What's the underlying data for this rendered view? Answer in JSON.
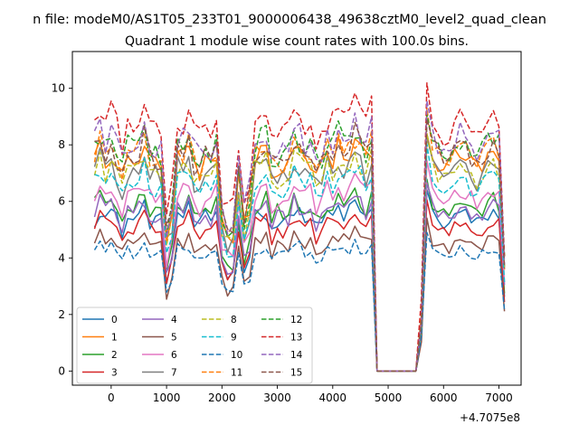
{
  "chart_data": {
    "type": "line",
    "suptitle": "n file: modeM0/AS1T05_233T01_9000006438_49638cztM0_level2_quad_clean",
    "title": "Quadrant 1 module wise count rates with 100.0s bins.",
    "xlabel": "",
    "ylabel": "",
    "offset_text": "+4.7075e8",
    "xlim": [
      -700,
      7400
    ],
    "ylim": [
      -0.5,
      11.3
    ],
    "xticks": [
      0,
      1000,
      2000,
      3000,
      4000,
      5000,
      6000,
      7000
    ],
    "yticks": [
      0,
      2,
      4,
      6,
      8,
      10
    ],
    "legend_position": "lower-left",
    "legend_columns": 4,
    "x_segments": [
      {
        "start": -300,
        "end": 4700,
        "step": 100
      },
      {
        "start": 4800,
        "end": 5500,
        "step": 100
      },
      {
        "start": 5600,
        "end": 7100,
        "step": 100
      }
    ],
    "series": [
      {
        "name": "0",
        "color": "#1f77b4",
        "style": "solid",
        "mean": 5.4
      },
      {
        "name": "1",
        "color": "#ff7f0e",
        "style": "solid",
        "mean": 7.4
      },
      {
        "name": "2",
        "color": "#2ca02c",
        "style": "solid",
        "mean": 5.8
      },
      {
        "name": "3",
        "color": "#d62728",
        "style": "solid",
        "mean": 5.1
      },
      {
        "name": "4",
        "color": "#9467bd",
        "style": "solid",
        "mean": 5.6
      },
      {
        "name": "5",
        "color": "#8c564b",
        "style": "solid",
        "mean": 4.5
      },
      {
        "name": "6",
        "color": "#e377c2",
        "style": "solid",
        "mean": 6.2
      },
      {
        "name": "7",
        "color": "#7f7f7f",
        "style": "solid",
        "mean": 7.0
      },
      {
        "name": "8",
        "color": "#bcbd22",
        "style": "dashed",
        "mean": 7.0
      },
      {
        "name": "9",
        "color": "#17becf",
        "style": "dashed",
        "mean": 6.6
      },
      {
        "name": "10",
        "color": "#1f77b4",
        "style": "dashed",
        "mean": 4.2
      },
      {
        "name": "11",
        "color": "#ff7f0e",
        "style": "dashed",
        "mean": 7.6
      },
      {
        "name": "12",
        "color": "#2ca02c",
        "style": "dashed",
        "mean": 7.9
      },
      {
        "name": "13",
        "color": "#d62728",
        "style": "dashed",
        "mean": 8.7
      },
      {
        "name": "14",
        "color": "#9467bd",
        "style": "dashed",
        "mean": 8.1
      },
      {
        "name": "15",
        "color": "#8c564b",
        "style": "dashed",
        "mean": 7.7
      }
    ]
  }
}
